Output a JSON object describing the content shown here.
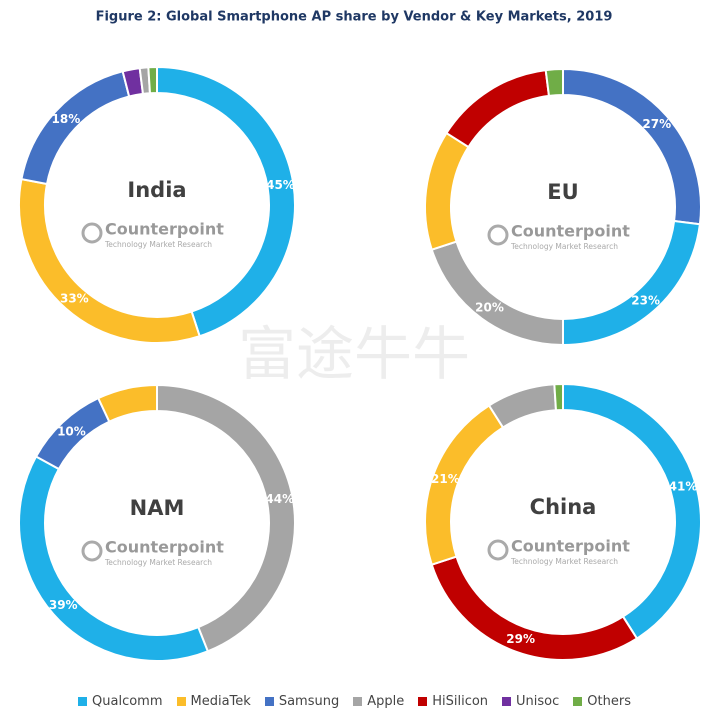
{
  "title": "Figure 2: Global Smartphone AP share by Vendor & Key Markets, 2019",
  "watermark_text": "富途牛牛",
  "brand": {
    "name": "Counterpoint",
    "tagline": "Technology Market Research"
  },
  "legend": {
    "names": [
      "Qualcomm",
      "MediaTek",
      "Samsung",
      "Apple",
      "HiSilicon",
      "Unisoc",
      "Others"
    ],
    "colors": [
      "#1fb0e8",
      "#fbbd2a",
      "#4472c4",
      "#a5a5a5",
      "#c00000",
      "#7030a0",
      "#70ad47"
    ]
  },
  "chart_data": [
    {
      "type": "donut",
      "title": "India",
      "categories": [
        "Qualcomm",
        "MediaTek",
        "Samsung",
        "Unisoc",
        "Apple",
        "Others"
      ],
      "values": [
        45,
        33,
        18,
        2,
        1,
        1
      ],
      "value_labels": [
        "45%",
        "33%",
        "18%",
        null,
        null,
        null
      ]
    },
    {
      "type": "donut",
      "title": "EU",
      "categories": [
        "Samsung",
        "Qualcomm",
        "Apple",
        "MediaTek",
        "HiSilicon",
        "Others"
      ],
      "values": [
        27,
        23,
        20,
        14,
        14,
        2
      ],
      "value_labels": [
        "27%",
        "23%",
        "20%",
        null,
        null,
        null
      ]
    },
    {
      "type": "donut",
      "title": "NAM",
      "categories": [
        "Apple",
        "Qualcomm",
        "Samsung",
        "MediaTek"
      ],
      "values": [
        44,
        39,
        10,
        7
      ],
      "value_labels": [
        "44%",
        "39%",
        "10%",
        null
      ]
    },
    {
      "type": "donut",
      "title": "China",
      "categories": [
        "Qualcomm",
        "HiSilicon",
        "MediaTek",
        "Apple",
        "Others"
      ],
      "values": [
        41,
        29,
        21,
        8,
        1
      ],
      "value_labels": [
        "41%",
        "29%",
        "21%",
        null,
        null
      ]
    }
  ]
}
